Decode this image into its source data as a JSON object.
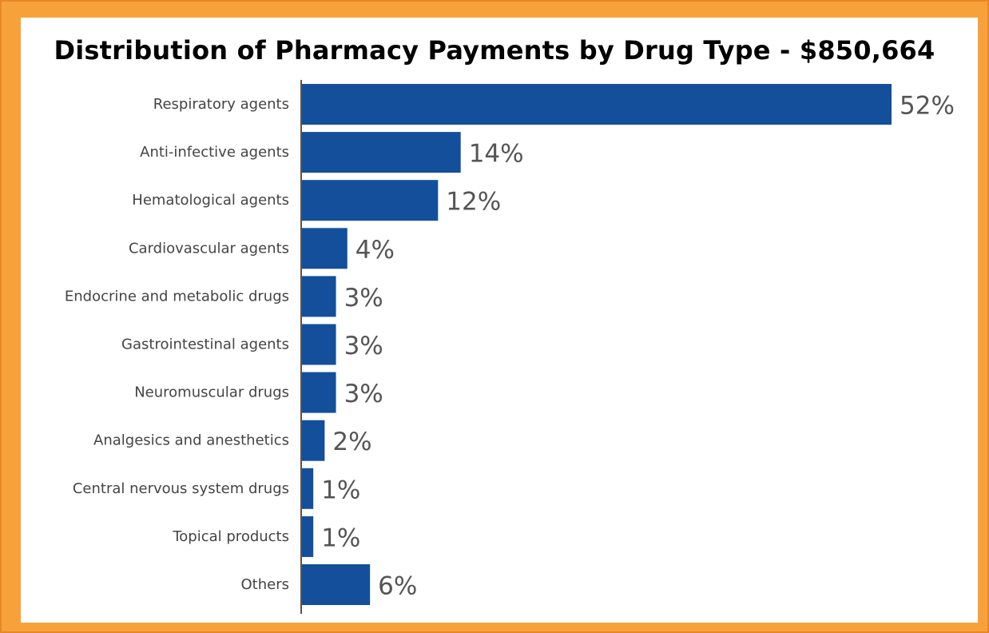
{
  "chart_data": {
    "type": "bar",
    "orientation": "horizontal",
    "title": "Distribution of Pharmacy Payments by Drug Type - $850,664",
    "categories": [
      "Respiratory agents",
      "Anti-infective agents",
      "Hematological agents",
      "Cardiovascular agents",
      "Endocrine and metabolic drugs",
      "Gastrointestinal agents",
      "Neuromuscular drugs",
      "Analgesics and anesthetics",
      "Central nervous system drugs",
      "Topical products",
      "Others"
    ],
    "values": [
      52,
      14,
      12,
      4,
      3,
      3,
      3,
      2,
      1,
      1,
      6
    ],
    "value_labels": [
      "52%",
      "14%",
      "12%",
      "4%",
      "3%",
      "3%",
      "3%",
      "2%",
      "1%",
      "1%",
      "6%"
    ],
    "unit": "%",
    "bar_color": "#134f9b",
    "grid": false,
    "legend": "none"
  },
  "colors": {
    "frame_orange": "#f7a13a",
    "bar_blue": "#134f9b"
  }
}
